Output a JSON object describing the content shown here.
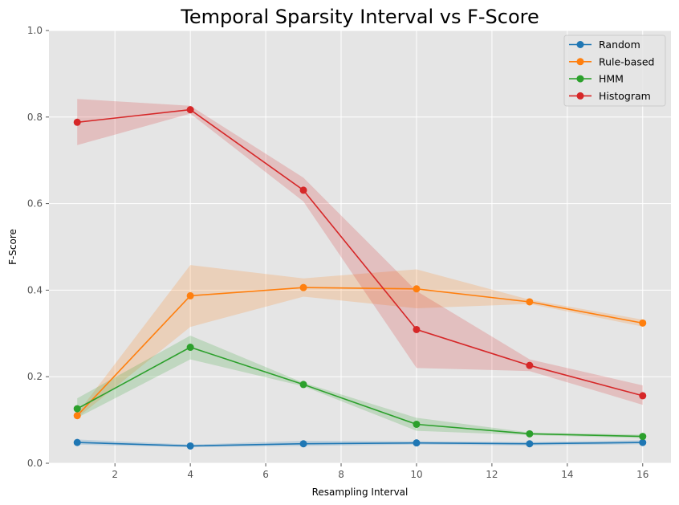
{
  "chart_data": {
    "type": "line",
    "title": "Temporal Sparsity Interval vs F-Score",
    "xlabel": "Resampling Interval",
    "ylabel": "F-Score",
    "xlim": [
      0.25,
      16.75
    ],
    "ylim": [
      0.0,
      1.0
    ],
    "xticks": [
      2,
      4,
      6,
      8,
      10,
      12,
      14,
      16
    ],
    "yticks": [
      0.0,
      0.2,
      0.4,
      0.6,
      0.8,
      1.0
    ],
    "grid": true,
    "legend_position": "top-right",
    "x": [
      1,
      4,
      7,
      10,
      13,
      16
    ],
    "series": [
      {
        "name": "Random",
        "color": "#1f77b4",
        "values": [
          0.048,
          0.04,
          0.045,
          0.047,
          0.045,
          0.048
        ],
        "lower": [
          0.043,
          0.037,
          0.04,
          0.043,
          0.041,
          0.044
        ],
        "upper": [
          0.055,
          0.043,
          0.052,
          0.051,
          0.049,
          0.053
        ]
      },
      {
        "name": "Rule-based",
        "color": "#ff7f0e",
        "values": [
          0.11,
          0.387,
          0.406,
          0.403,
          0.373,
          0.324
        ],
        "lower": [
          0.105,
          0.315,
          0.385,
          0.358,
          0.368,
          0.316
        ],
        "upper": [
          0.115,
          0.458,
          0.427,
          0.448,
          0.378,
          0.332
        ]
      },
      {
        "name": "HMM",
        "color": "#2ca02c",
        "values": [
          0.126,
          0.268,
          0.182,
          0.09,
          0.068,
          0.062
        ],
        "lower": [
          0.105,
          0.24,
          0.178,
          0.075,
          0.065,
          0.058
        ],
        "upper": [
          0.15,
          0.295,
          0.186,
          0.105,
          0.071,
          0.066
        ]
      },
      {
        "name": "Histogram",
        "color": "#d62728",
        "values": [
          0.788,
          0.817,
          0.631,
          0.309,
          0.226,
          0.156
        ],
        "lower": [
          0.735,
          0.808,
          0.605,
          0.22,
          0.213,
          0.135
        ],
        "upper": [
          0.842,
          0.826,
          0.66,
          0.398,
          0.24,
          0.18
        ]
      }
    ]
  }
}
